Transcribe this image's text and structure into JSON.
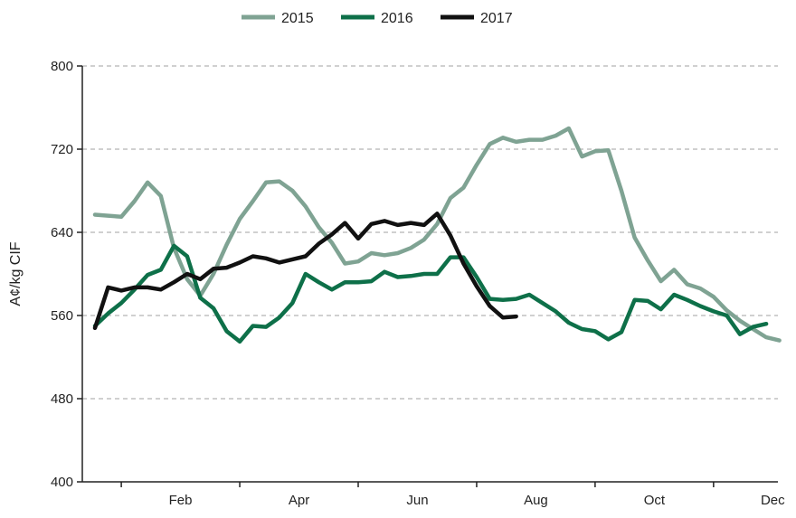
{
  "chart_data": {
    "type": "line",
    "title": "",
    "xlabel": "",
    "ylabel": "A¢/kg CIF",
    "ylim": [
      400,
      800
    ],
    "yticks": [
      400,
      480,
      560,
      640,
      720,
      800
    ],
    "xlim": [
      0,
      52
    ],
    "xticks": [
      {
        "label": "Feb",
        "x": 7.5
      },
      {
        "label": "Apr",
        "x": 16.5
      },
      {
        "label": "Jun",
        "x": 25.5
      },
      {
        "label": "Aug",
        "x": 34.5
      },
      {
        "label": "Oct",
        "x": 43.5
      },
      {
        "label": "Dec",
        "x": 52.5
      }
    ],
    "grid": "horizontal dashed",
    "legend_position": "top-center",
    "series": [
      {
        "name": "2015",
        "color": "#7fa393",
        "x": [
          1,
          2,
          3,
          4,
          5,
          6,
          7,
          8,
          9,
          10,
          11,
          12,
          13,
          14,
          15,
          16,
          17,
          18,
          19,
          20,
          21,
          22,
          23,
          24,
          25,
          26,
          27,
          28,
          29,
          30,
          31,
          32,
          33,
          34,
          35,
          36,
          37,
          38,
          39,
          40,
          41,
          42,
          43,
          44,
          45,
          46,
          47,
          48,
          49,
          50,
          51,
          52,
          53
        ],
        "values": [
          657,
          656,
          655,
          670,
          688,
          675,
          625,
          595,
          579,
          600,
          628,
          653,
          670,
          688,
          689,
          680,
          665,
          645,
          630,
          610,
          612,
          620,
          618,
          620,
          625,
          633,
          648,
          673,
          683,
          705,
          725,
          731,
          727,
          729,
          729,
          733,
          740,
          713,
          718,
          719,
          680,
          635,
          613,
          593,
          604,
          590,
          586,
          578,
          565,
          555,
          547,
          539,
          536
        ]
      },
      {
        "name": "2016",
        "color": "#0e7049",
        "x": [
          1,
          2,
          3,
          4,
          5,
          6,
          7,
          8,
          9,
          10,
          11,
          12,
          13,
          14,
          15,
          16,
          17,
          18,
          19,
          20,
          21,
          22,
          23,
          24,
          25,
          26,
          27,
          28,
          29,
          30,
          31,
          32,
          33,
          34,
          35,
          36,
          37,
          38,
          39,
          40,
          41,
          42,
          43,
          44,
          45,
          46,
          47,
          48,
          49,
          50,
          51,
          52
        ],
        "values": [
          550,
          562,
          572,
          585,
          599,
          604,
          627,
          617,
          577,
          567,
          545,
          535,
          550,
          549,
          558,
          572,
          600,
          592,
          585,
          592,
          592,
          593,
          602,
          597,
          598,
          600,
          600,
          616,
          616,
          597,
          576,
          575,
          576,
          580,
          572,
          564,
          553,
          547,
          545,
          537,
          544,
          575,
          574,
          566,
          580,
          575,
          569,
          564,
          560,
          542,
          549,
          552
        ]
      },
      {
        "name": "2017",
        "color": "#111111",
        "x": [
          1,
          2,
          3,
          4,
          5,
          6,
          7,
          8,
          9,
          10,
          11,
          12,
          13,
          14,
          15,
          16,
          17,
          18,
          19,
          20,
          21,
          22,
          23,
          24,
          25,
          26,
          27,
          28,
          29,
          30,
          31,
          32,
          33
        ],
        "values": [
          548,
          587,
          584,
          587,
          587,
          585,
          592,
          600,
          595,
          605,
          606,
          611,
          617,
          615,
          611,
          614,
          617,
          629,
          638,
          649,
          634,
          648,
          651,
          647,
          649,
          647,
          658,
          637,
          610,
          588,
          569,
          558,
          559
        ]
      }
    ]
  }
}
